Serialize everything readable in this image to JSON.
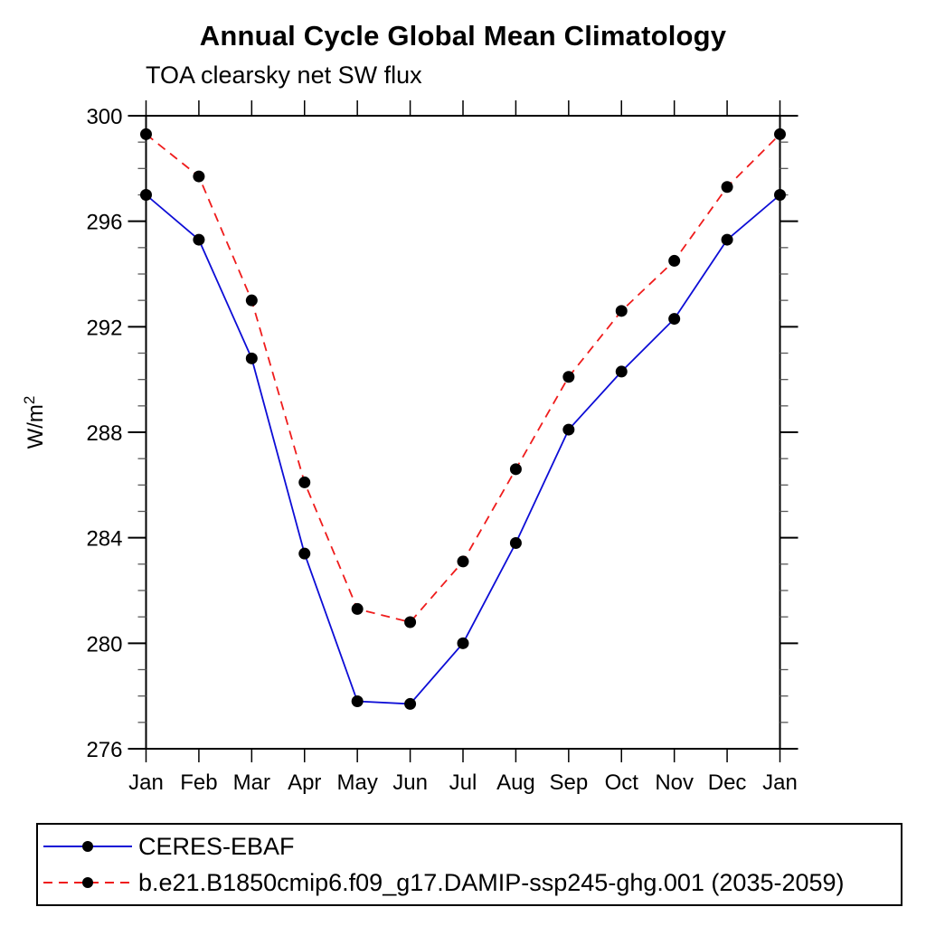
{
  "chart_data": {
    "type": "line",
    "title": "Annual Cycle Global Mean Climatology",
    "subtitle": "TOA clearsky net SW flux",
    "ylabel": "W/m",
    "ylabel_superscript": "2",
    "categories": [
      "Jan",
      "Feb",
      "Mar",
      "Apr",
      "May",
      "Jun",
      "Jul",
      "Aug",
      "Sep",
      "Oct",
      "Nov",
      "Dec",
      "Jan"
    ],
    "ylim": [
      276,
      300
    ],
    "ytick_major": [
      276,
      280,
      284,
      288,
      292,
      296,
      300
    ],
    "ytick_minor_step": 1,
    "grid": "off",
    "legend_position": "bottom-left-box",
    "axis_color": "#000000",
    "marker_color": "#000000",
    "series": [
      {
        "name": "CERES-EBAF",
        "color": "#0d0dd6",
        "line_style": "solid",
        "marker": "circle",
        "values": [
          297.0,
          295.3,
          290.8,
          283.4,
          277.8,
          277.7,
          280.0,
          283.8,
          288.1,
          290.3,
          292.3,
          295.3,
          297.0
        ]
      },
      {
        "name": "b.e21.B1850cmip6.f09_g17.DAMIP-ssp245-ghg.001 (2035-2059)",
        "color": "#ef1c1c",
        "line_style": "dashed",
        "marker": "circle",
        "values": [
          299.3,
          297.7,
          293.0,
          286.1,
          281.3,
          280.8,
          283.1,
          286.6,
          290.1,
          292.6,
          294.5,
          297.3,
          299.3
        ]
      }
    ]
  }
}
